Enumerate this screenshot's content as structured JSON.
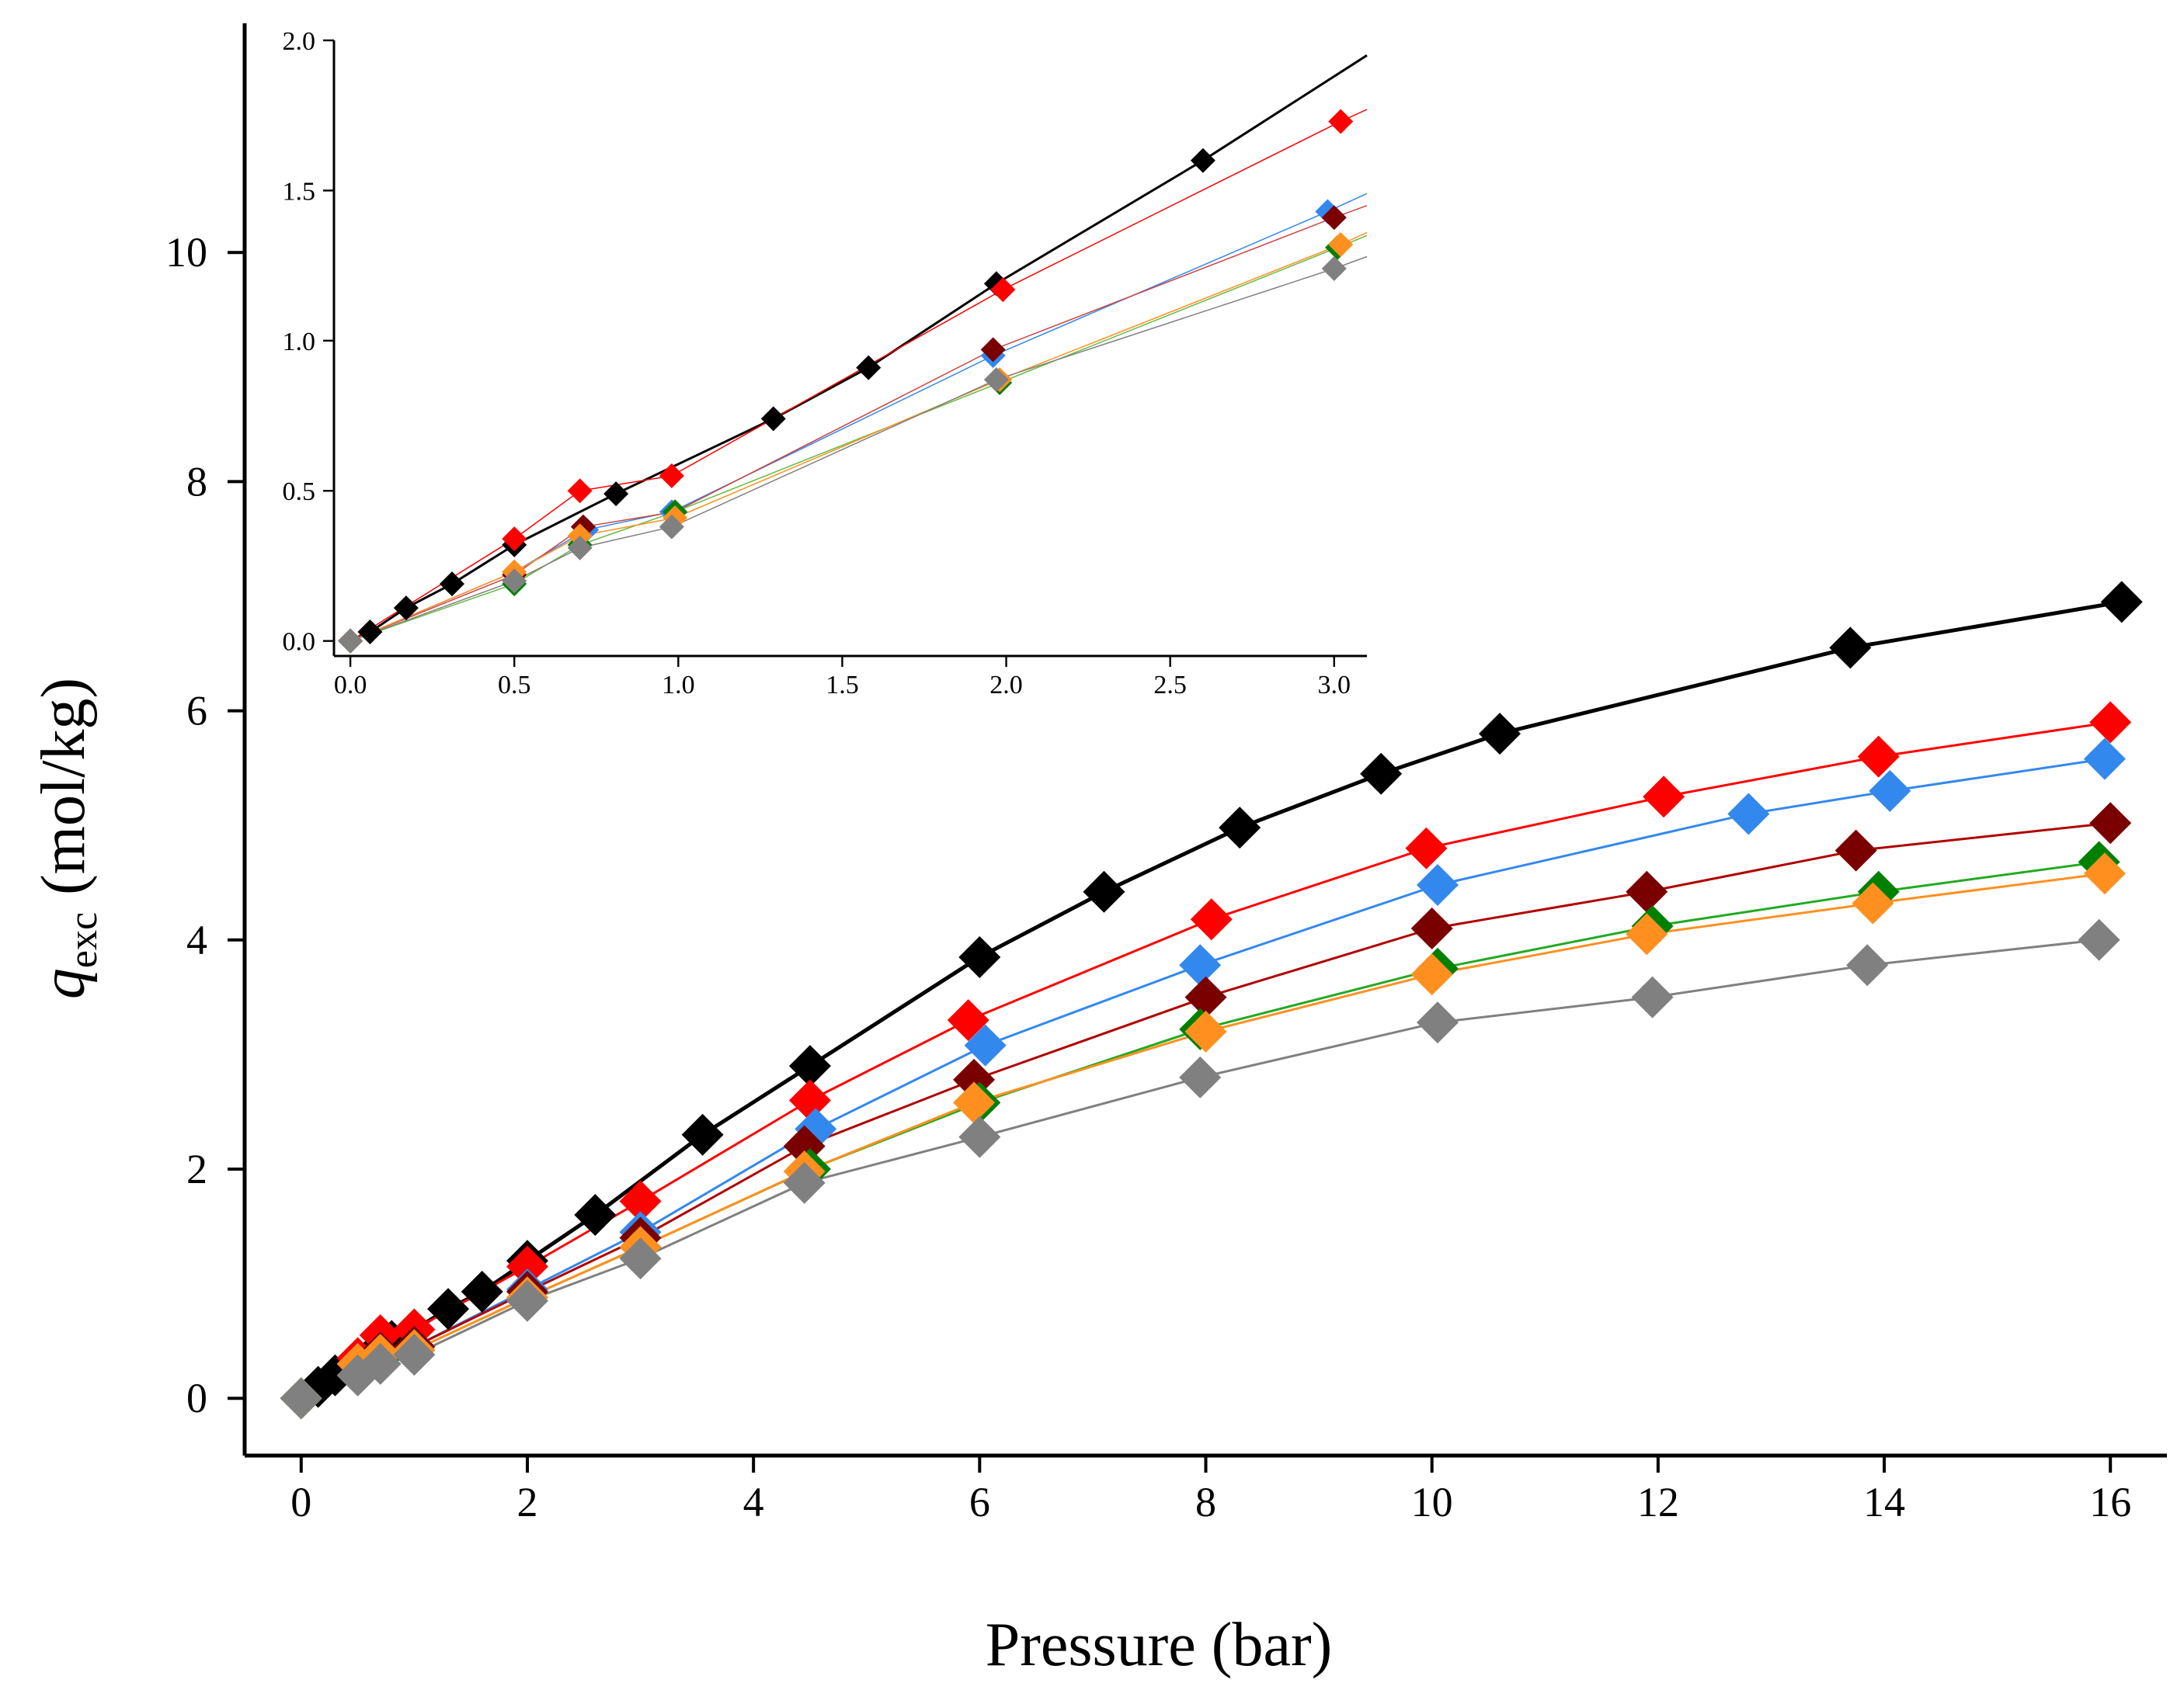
{
  "chart_data": {
    "type": "line",
    "xlabel": "Pressure (bar)",
    "ylabel": {
      "symbol": "q",
      "subscript": "exc",
      "unit": "(mol/kg)"
    },
    "main": {
      "xlim": [
        -0.5,
        16.5
      ],
      "ylim": [
        -0.5,
        12
      ],
      "xticks": [
        "0",
        "2",
        "4",
        "6",
        "8",
        "10",
        "12",
        "14",
        "16"
      ],
      "yticks": [
        "0",
        "2",
        "4",
        "6",
        "8",
        "10"
      ],
      "series": [
        {
          "name": "black",
          "color": "#000000",
          "width": 5,
          "x": [
            0,
            0.15,
            0.3,
            0.5,
            0.65,
            0.8,
            1.0,
            1.3,
            1.6,
            2.0,
            2.6,
            3.55,
            4.5,
            6.0,
            7.1,
            8.3,
            9.55,
            10.6,
            13.7,
            16.1
          ],
          "y": [
            0,
            0.1,
            0.2,
            0.3,
            0.4,
            0.5,
            0.6,
            0.78,
            0.93,
            1.2,
            1.6,
            2.3,
            2.9,
            3.85,
            4.42,
            4.98,
            5.45,
            5.8,
            6.55,
            6.95
          ]
        },
        {
          "name": "red",
          "color": "#ff0000",
          "width": 3,
          "x": [
            0,
            0.5,
            0.7,
            1.0,
            2.0,
            3.0,
            4.5,
            5.9,
            8.05,
            9.95,
            12.05,
            13.95,
            16.0
          ],
          "y": [
            0,
            0.35,
            0.55,
            0.6,
            1.15,
            1.72,
            2.6,
            3.3,
            4.18,
            4.8,
            5.25,
            5.6,
            5.9
          ]
        },
        {
          "name": "blue",
          "color": "#3388ee",
          "width": 3,
          "x": [
            0,
            0.5,
            0.7,
            1.0,
            2.0,
            3.0,
            4.55,
            6.05,
            7.95,
            10.05,
            12.8,
            14.05,
            15.95
          ],
          "y": [
            0,
            0.3,
            0.4,
            0.45,
            0.95,
            1.45,
            2.35,
            3.08,
            3.78,
            4.48,
            5.1,
            5.3,
            5.58
          ]
        },
        {
          "name": "darkred",
          "color": "#7a0000",
          "linecolor": "#b00000",
          "width": 3,
          "x": [
            0,
            0.5,
            0.7,
            1.0,
            2.0,
            3.0,
            4.45,
            5.95,
            8.0,
            10.0,
            11.9,
            13.75,
            16.0
          ],
          "y": [
            0,
            0.3,
            0.4,
            0.45,
            0.93,
            1.4,
            2.2,
            2.78,
            3.5,
            4.1,
            4.42,
            4.78,
            5.02
          ]
        },
        {
          "name": "green",
          "color": "#008000",
          "linecolor": "#22aa22",
          "width": 3,
          "x": [
            0,
            0.5,
            0.7,
            1.0,
            2.0,
            3.0,
            4.5,
            6.0,
            7.95,
            10.05,
            11.95,
            13.95,
            15.9
          ],
          "y": [
            0,
            0.2,
            0.35,
            0.42,
            0.88,
            1.32,
            2.0,
            2.58,
            3.22,
            3.75,
            4.12,
            4.42,
            4.68
          ]
        },
        {
          "name": "orange",
          "color": "#ff9020",
          "width": 3,
          "x": [
            0,
            0.5,
            0.7,
            1.0,
            2.0,
            3.0,
            4.45,
            5.95,
            8.0,
            10.0,
            11.9,
            13.9,
            15.95
          ],
          "y": [
            0,
            0.3,
            0.38,
            0.42,
            0.88,
            1.32,
            1.98,
            2.58,
            3.2,
            3.7,
            4.05,
            4.32,
            4.58
          ]
        },
        {
          "name": "gray",
          "color": "#808080",
          "width": 3,
          "x": [
            0,
            0.5,
            0.7,
            1.0,
            2.0,
            3.0,
            4.45,
            6.0,
            7.95,
            10.05,
            11.95,
            13.85,
            15.9
          ],
          "y": [
            0,
            0.2,
            0.3,
            0.38,
            0.85,
            1.22,
            1.88,
            2.28,
            2.8,
            3.28,
            3.5,
            3.78,
            4.0
          ]
        }
      ]
    },
    "inset": {
      "xlim": [
        -0.05,
        3.1
      ],
      "ylim": [
        -0.05,
        2.0
      ],
      "xticks": [
        "0.0",
        "0.5",
        "1.0",
        "1.5",
        "2.0",
        "2.5",
        "3.0"
      ],
      "yticks": [
        "0.0",
        "0.5",
        "1.0",
        "1.5",
        "2.0"
      ],
      "series": [
        {
          "name": "black",
          "color": "#000000",
          "width": 3,
          "x": [
            0,
            0.06,
            0.17,
            0.31,
            0.5,
            0.81,
            1.29,
            1.58,
            1.97,
            2.6,
            3.1
          ],
          "y": [
            0,
            0.03,
            0.11,
            0.19,
            0.32,
            0.49,
            0.74,
            0.91,
            1.19,
            1.6,
            1.95
          ]
        },
        {
          "name": "red",
          "color": "#ff0000",
          "width": 1.5,
          "x": [
            0,
            0.5,
            0.7,
            0.98,
            1.99,
            3.02,
            3.1
          ],
          "y": [
            0,
            0.34,
            0.5,
            0.55,
            1.17,
            1.73,
            1.77
          ]
        },
        {
          "name": "blue",
          "color": "#3388ee",
          "width": 1.5,
          "x": [
            0,
            0.5,
            0.72,
            0.98,
            1.96,
            2.98,
            3.1
          ],
          "y": [
            0,
            0.23,
            0.37,
            0.43,
            0.95,
            1.43,
            1.49
          ]
        },
        {
          "name": "darkred",
          "color": "#7a0000",
          "linecolor": "#cc4444",
          "width": 1.5,
          "x": [
            0,
            0.5,
            0.71,
            0.99,
            1.96,
            3.0,
            3.1
          ],
          "y": [
            0,
            0.22,
            0.38,
            0.43,
            0.97,
            1.41,
            1.45
          ]
        },
        {
          "name": "green",
          "color": "#008000",
          "linecolor": "#66bb44",
          "width": 1.5,
          "x": [
            0,
            0.5,
            0.7,
            0.99,
            1.98,
            3.01,
            3.1
          ],
          "y": [
            0,
            0.19,
            0.32,
            0.43,
            0.86,
            1.31,
            1.35
          ]
        },
        {
          "name": "orange",
          "color": "#ff9020",
          "width": 1.5,
          "x": [
            0,
            0.5,
            0.7,
            0.99,
            1.98,
            3.02,
            3.1
          ],
          "y": [
            0,
            0.23,
            0.35,
            0.41,
            0.87,
            1.32,
            1.36
          ]
        },
        {
          "name": "gray",
          "color": "#808080",
          "width": 1.5,
          "x": [
            0,
            0.5,
            0.7,
            0.98,
            1.97,
            3.0,
            3.1
          ],
          "y": [
            0,
            0.2,
            0.31,
            0.38,
            0.87,
            1.24,
            1.28
          ]
        }
      ]
    }
  }
}
